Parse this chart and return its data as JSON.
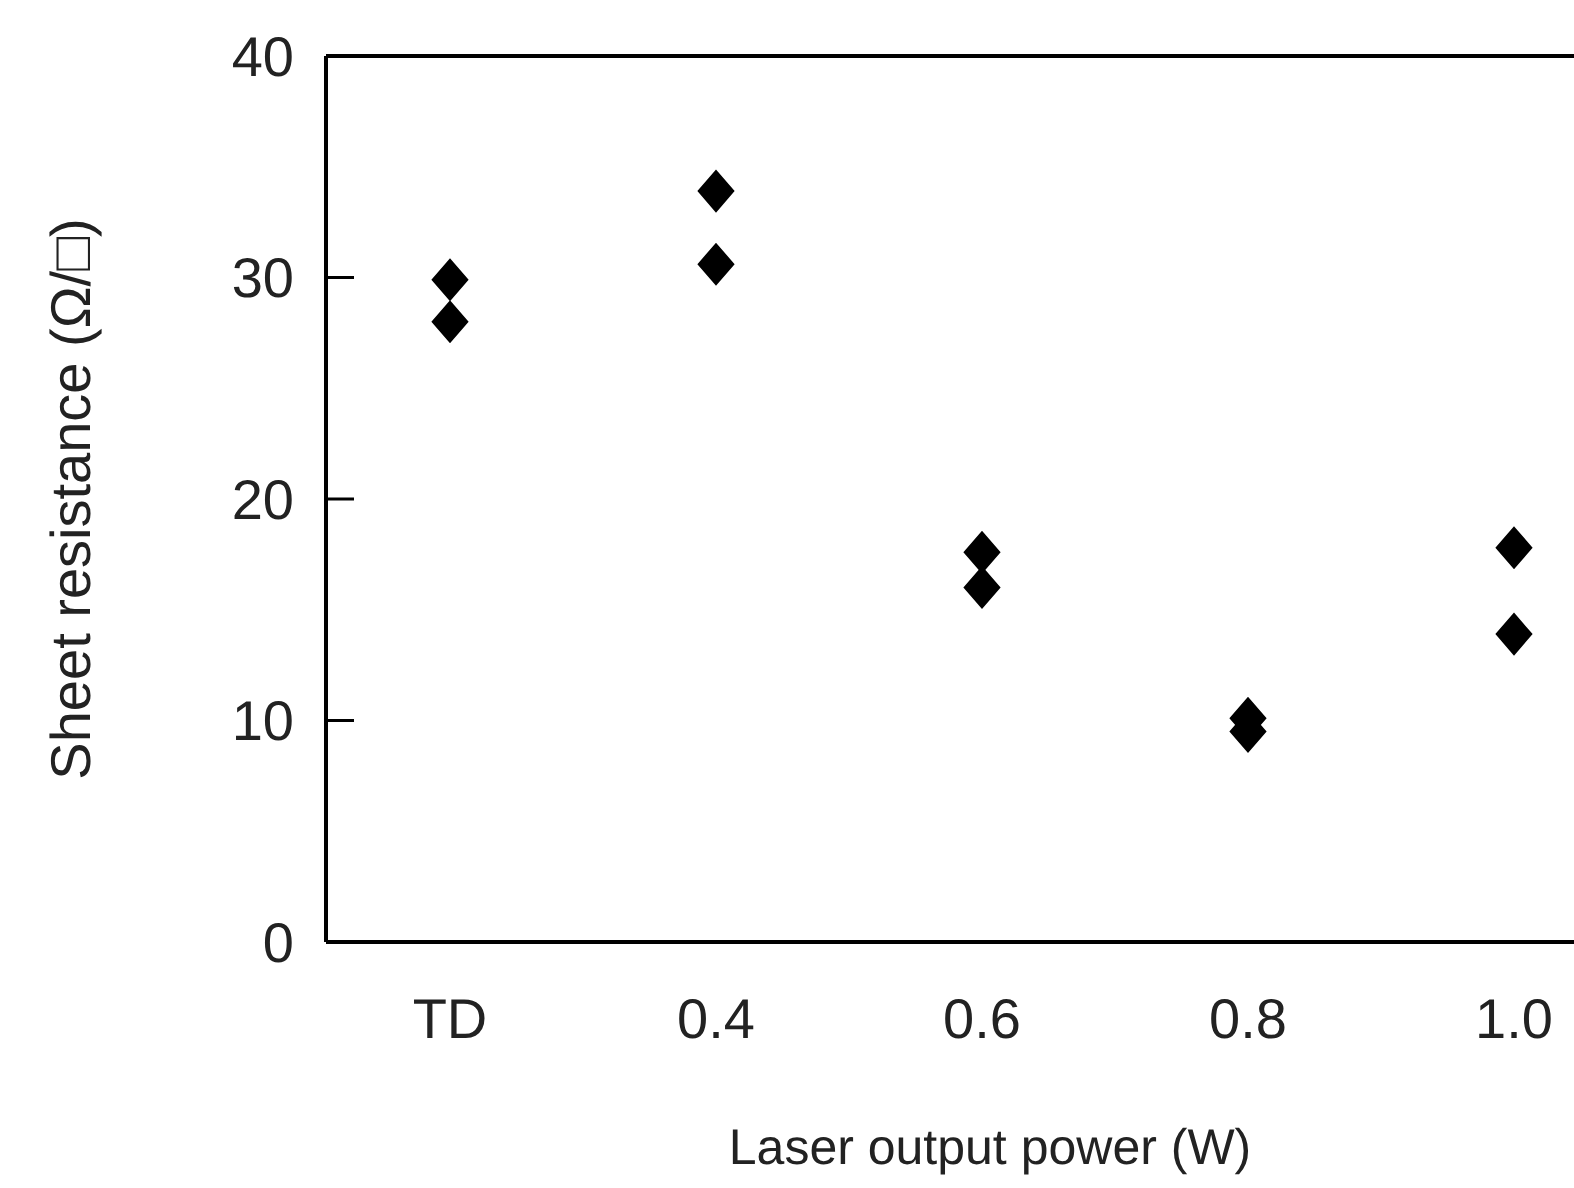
{
  "chart_data": {
    "type": "scatter",
    "xlabel": "Laser output power (W)",
    "ylabel": "Sheet resistance (Ω/□)",
    "categories": [
      "TD",
      "0.4",
      "0.6",
      "0.8",
      "1.0"
    ],
    "ylim": [
      0,
      40
    ],
    "yticks": [
      0,
      10,
      20,
      30,
      40
    ],
    "marker": "diamond",
    "series": [
      {
        "color": "#000000",
        "x": [
          "TD",
          "TD",
          "0.4",
          "0.4",
          "0.6",
          "0.6",
          "0.8",
          "0.8",
          "1.0",
          "1.0"
        ],
        "values": [
          29.9,
          28.0,
          33.9,
          30.6,
          17.6,
          16.0,
          10.1,
          9.5,
          17.8,
          13.9
        ]
      }
    ]
  }
}
